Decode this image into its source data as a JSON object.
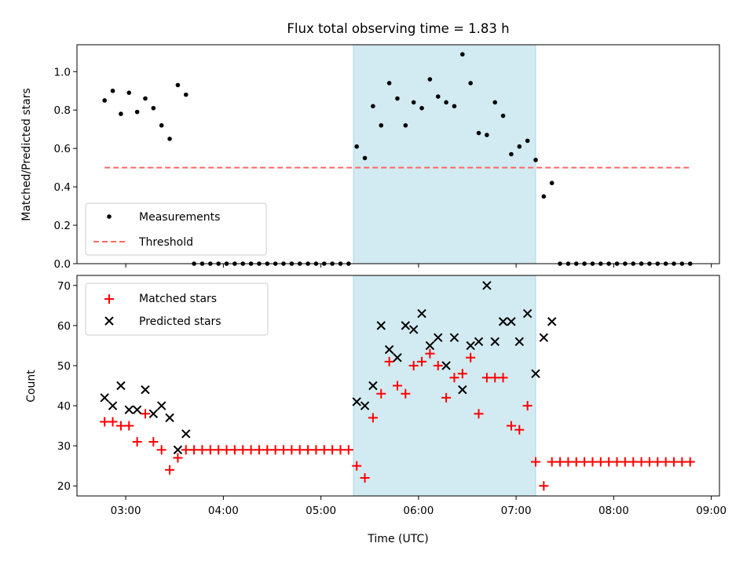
{
  "chart_data": [
    {
      "type": "scatter",
      "title": "Flux total observing time = 1.83 h",
      "xlabel": "",
      "ylabel": "Matched/Predicted stars",
      "xlim": [
        "02:30",
        "09:05"
      ],
      "ylim": [
        0,
        1.14
      ],
      "yticks": [
        "0.0",
        "0.2",
        "0.4",
        "0.6",
        "0.8",
        "1.0"
      ],
      "xticklabels_visible": false,
      "highlight_span": {
        "start": "05:20",
        "end": "07:12",
        "color": "#add8e6"
      },
      "legend": {
        "placement": "lower-left",
        "entries": [
          {
            "label": "Measurements",
            "marker": "dot",
            "color": "#000000"
          },
          {
            "label": "Threshold",
            "marker": "dashed-line",
            "color": "#ff6666"
          }
        ]
      },
      "threshold": {
        "value": 0.5,
        "x_start": "02:47",
        "x_end": "08:47",
        "color": "#ff6666"
      },
      "series": [
        {
          "name": "Measurements",
          "color": "#000000",
          "x": [
            "02:47",
            "02:52",
            "02:57",
            "03:02",
            "03:07",
            "03:12",
            "03:17",
            "03:22",
            "03:27",
            "03:32",
            "03:37",
            "03:42",
            "03:47",
            "03:52",
            "03:57",
            "04:02",
            "04:07",
            "04:12",
            "04:17",
            "04:22",
            "04:27",
            "04:32",
            "04:37",
            "04:42",
            "04:47",
            "04:52",
            "04:57",
            "05:02",
            "05:07",
            "05:12",
            "05:17",
            "05:22",
            "05:27",
            "05:32",
            "05:37",
            "05:42",
            "05:47",
            "05:52",
            "05:57",
            "06:02",
            "06:07",
            "06:12",
            "06:17",
            "06:22",
            "06:27",
            "06:32",
            "06:37",
            "06:42",
            "06:47",
            "06:52",
            "06:57",
            "07:02",
            "07:07",
            "07:12",
            "07:17",
            "07:22",
            "07:27",
            "07:32",
            "07:37",
            "07:42",
            "07:47",
            "07:52",
            "07:57",
            "08:02",
            "08:07",
            "08:12",
            "08:17",
            "08:22",
            "08:27",
            "08:32",
            "08:37",
            "08:42",
            "08:47"
          ],
          "y": [
            0.85,
            0.9,
            0.78,
            0.89,
            0.79,
            0.86,
            0.81,
            0.72,
            0.65,
            0.93,
            0.88,
            0,
            0,
            0,
            0,
            0,
            0,
            0,
            0,
            0,
            0,
            0,
            0,
            0,
            0,
            0,
            0,
            0,
            0,
            0,
            0,
            0.61,
            0.55,
            0.82,
            0.72,
            0.94,
            0.86,
            0.72,
            0.84,
            0.81,
            0.96,
            0.87,
            0.84,
            0.82,
            1.09,
            0.94,
            0.68,
            0.67,
            0.84,
            0.77,
            0.57,
            0.61,
            0.64,
            0.54,
            0.35,
            0.42,
            0,
            0,
            0,
            0,
            0,
            0,
            0,
            0,
            0,
            0,
            0,
            0,
            0,
            0,
            0,
            0,
            0
          ]
        }
      ]
    },
    {
      "type": "scatter",
      "title": "",
      "xlabel": "Time (UTC)",
      "ylabel": "Count",
      "xlim": [
        "02:30",
        "09:05"
      ],
      "ylim": [
        17.5,
        72.5
      ],
      "yticks": [
        "20",
        "30",
        "40",
        "50",
        "60",
        "70"
      ],
      "xticks": [
        "03:00",
        "04:00",
        "05:00",
        "06:00",
        "07:00",
        "08:00",
        "09:00"
      ],
      "highlight_span": {
        "start": "05:20",
        "end": "07:12",
        "color": "#add8e6"
      },
      "legend": {
        "placement": "upper-left",
        "entries": [
          {
            "label": "Matched stars",
            "marker": "plus",
            "color": "#ff0000"
          },
          {
            "label": "Predicted stars",
            "marker": "x",
            "color": "#000000"
          }
        ]
      },
      "series": [
        {
          "name": "Matched stars",
          "color": "#ff0000",
          "x": [
            "02:47",
            "02:52",
            "02:57",
            "03:02",
            "03:07",
            "03:12",
            "03:17",
            "03:22",
            "03:27",
            "03:32",
            "03:37",
            "03:42",
            "03:47",
            "03:52",
            "03:57",
            "04:02",
            "04:07",
            "04:12",
            "04:17",
            "04:22",
            "04:27",
            "04:32",
            "04:37",
            "04:42",
            "04:47",
            "04:52",
            "04:57",
            "05:02",
            "05:07",
            "05:12",
            "05:17",
            "05:22",
            "05:27",
            "05:32",
            "05:37",
            "05:42",
            "05:47",
            "05:52",
            "05:57",
            "06:02",
            "06:07",
            "06:12",
            "06:17",
            "06:22",
            "06:27",
            "06:32",
            "06:37",
            "06:42",
            "06:47",
            "06:52",
            "06:57",
            "07:02",
            "07:07",
            "07:12",
            "07:17",
            "07:22",
            "07:27",
            "07:32",
            "07:37",
            "07:42",
            "07:47",
            "07:52",
            "07:57",
            "08:02",
            "08:07",
            "08:12",
            "08:17",
            "08:22",
            "08:27",
            "08:32",
            "08:37",
            "08:42",
            "08:47"
          ],
          "y": [
            36,
            36,
            35,
            35,
            31,
            38,
            31,
            29,
            24,
            27,
            29,
            29,
            29,
            29,
            29,
            29,
            29,
            29,
            29,
            29,
            29,
            29,
            29,
            29,
            29,
            29,
            29,
            29,
            29,
            29,
            29,
            25,
            22,
            37,
            43,
            51,
            45,
            43,
            50,
            51,
            53,
            50,
            42,
            47,
            48,
            52,
            38,
            47,
            47,
            47,
            35,
            34,
            40,
            26,
            20,
            26,
            26,
            26,
            26,
            26,
            26,
            26,
            26,
            26,
            26,
            26,
            26,
            26,
            26,
            26,
            26,
            26,
            26
          ]
        },
        {
          "name": "Predicted stars",
          "color": "#000000",
          "x": [
            "02:47",
            "02:52",
            "02:57",
            "03:02",
            "03:07",
            "03:12",
            "03:17",
            "03:22",
            "03:27",
            "03:32",
            "03:37",
            "05:22",
            "05:27",
            "05:32",
            "05:37",
            "05:42",
            "05:47",
            "05:52",
            "05:57",
            "06:02",
            "06:07",
            "06:12",
            "06:17",
            "06:22",
            "06:27",
            "06:32",
            "06:37",
            "06:42",
            "06:47",
            "06:52",
            "06:57",
            "07:02",
            "07:07",
            "07:12",
            "07:17",
            "07:22"
          ],
          "y": [
            42,
            40,
            45,
            39,
            39,
            44,
            38,
            40,
            37,
            29,
            33,
            41,
            40,
            45,
            60,
            54,
            52,
            60,
            59,
            63,
            55,
            57,
            50,
            57,
            44,
            55,
            56,
            70,
            56,
            61,
            61,
            56,
            63,
            48,
            57,
            61
          ]
        }
      ]
    }
  ]
}
